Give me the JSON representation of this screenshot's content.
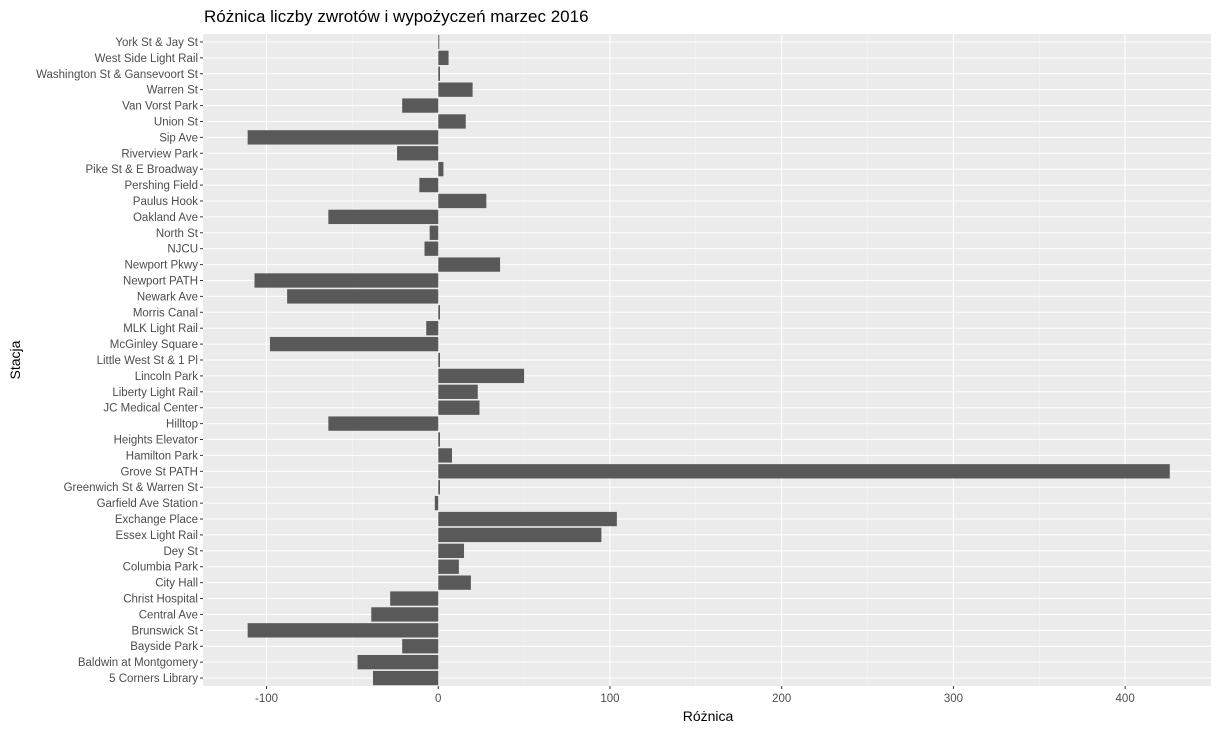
{
  "chart_data": {
    "type": "bar",
    "orientation": "horizontal",
    "title": "Różnica liczby zwrotów i wypożyczeń marzec 2016",
    "xlabel": "Różnica",
    "ylabel": "Stacja",
    "xlim": [
      -137,
      450
    ],
    "xticks": [
      -100,
      0,
      100,
      200,
      300,
      400
    ],
    "grid": true,
    "categories": [
      "5 Corners Library",
      "Baldwin at Montgomery",
      "Bayside Park",
      "Brunswick St",
      "Central Ave",
      "Christ Hospital",
      "City Hall",
      "Columbia Park",
      "Dey St",
      "Essex Light Rail",
      "Exchange Place",
      "Garfield Ave Station",
      "Greenwich St & Warren St",
      "Grove St PATH",
      "Hamilton Park",
      "Heights Elevator",
      "Hilltop",
      "JC Medical Center",
      "Liberty Light Rail",
      "Lincoln Park",
      "Little West St & 1 Pl",
      "McGinley Square",
      "MLK Light Rail",
      "Morris Canal",
      "Newark Ave",
      "Newport PATH",
      "Newport Pkwy",
      "NJCU",
      "North St",
      "Oakland Ave",
      "Paulus Hook",
      "Pershing Field",
      "Pike St & E Broadway",
      "Riverview Park",
      "Sip Ave",
      "Union St",
      "Van Vorst Park",
      "Warren St",
      "Washington St & Gansevoort St",
      "West Side Light Rail",
      "York St & Jay St"
    ],
    "values": [
      -38,
      -47,
      -21,
      -111,
      -39,
      -28,
      19,
      12,
      15,
      95,
      104,
      -2,
      1,
      426,
      8,
      1,
      -64,
      24,
      23,
      50,
      1,
      -98,
      -7,
      1,
      -88,
      -107,
      36,
      -8,
      -5,
      -64,
      28,
      -11,
      3,
      -24,
      -111,
      16,
      -21,
      20,
      1,
      6,
      0
    ],
    "bar_color": "#595959",
    "panel_color": "#ebebeb",
    "grid_major_color": "#ffffff",
    "grid_minor_color": "#f5f5f5"
  }
}
